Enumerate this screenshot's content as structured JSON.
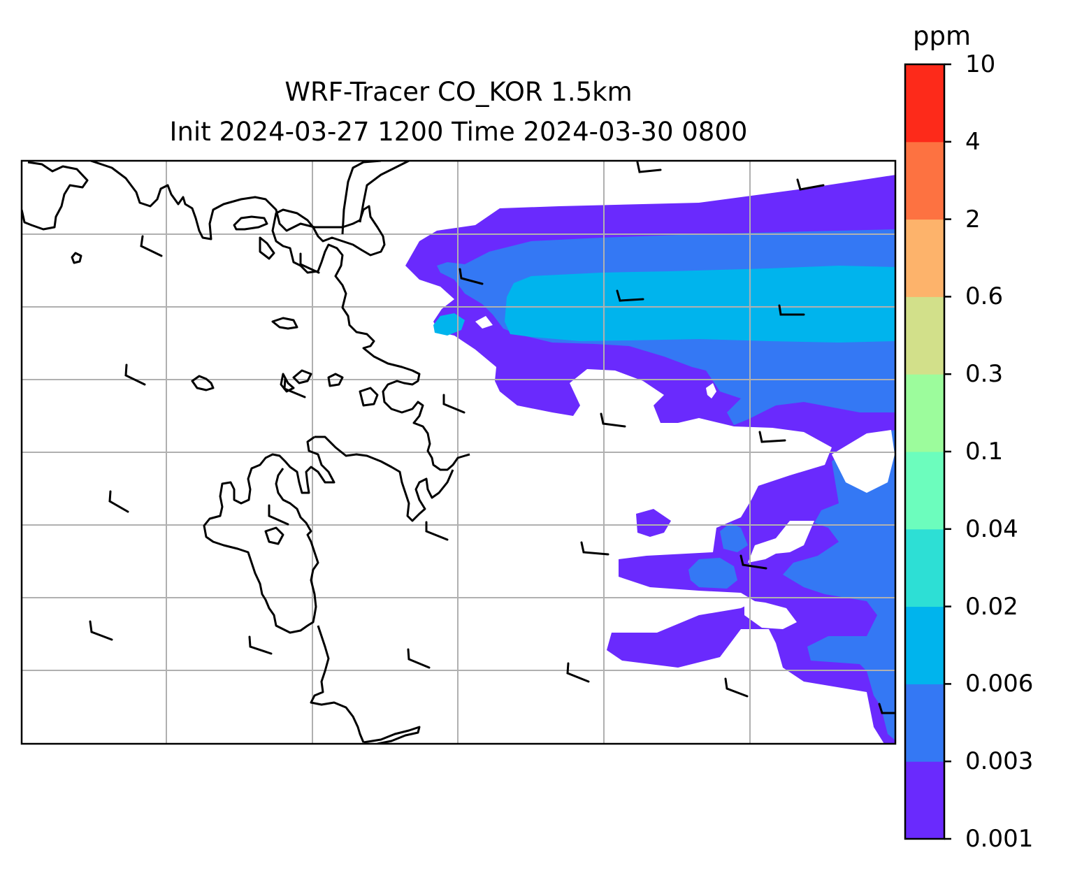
{
  "figure": {
    "title_line_1": "WRF-Tracer CO_KOR 1.5km",
    "title_line_2": "Init 2024-03-27 1200 Time 2024-03-30 0800"
  },
  "map": {
    "variable": "CO_KOR tracer concentration",
    "gridlines": true,
    "gridline_color": "#b0b0b0",
    "coastline_color": "#000000",
    "wind_barb_color": "#000000",
    "plume_levels_shown": [
      "0.001-0.003",
      "0.003-0.006",
      "0.006-0.02"
    ]
  },
  "colorbar": {
    "unit": "ppm",
    "tick_labels": [
      "10",
      "4",
      "2",
      "0.6",
      "0.3",
      "0.1",
      "0.04",
      "0.02",
      "0.006",
      "0.003",
      "0.001"
    ],
    "levels": [
      0.001,
      0.003,
      0.006,
      0.02,
      0.04,
      0.1,
      0.3,
      0.6,
      2,
      4,
      10
    ],
    "colors": [
      "#6a2afd",
      "#3478f4",
      "#00b4ed",
      "#2ddfd5",
      "#6cfdbd",
      "#9cfc9c",
      "#d2e08a",
      "#fdb36b",
      "#fd7241",
      "#fd2a1a"
    ]
  }
}
